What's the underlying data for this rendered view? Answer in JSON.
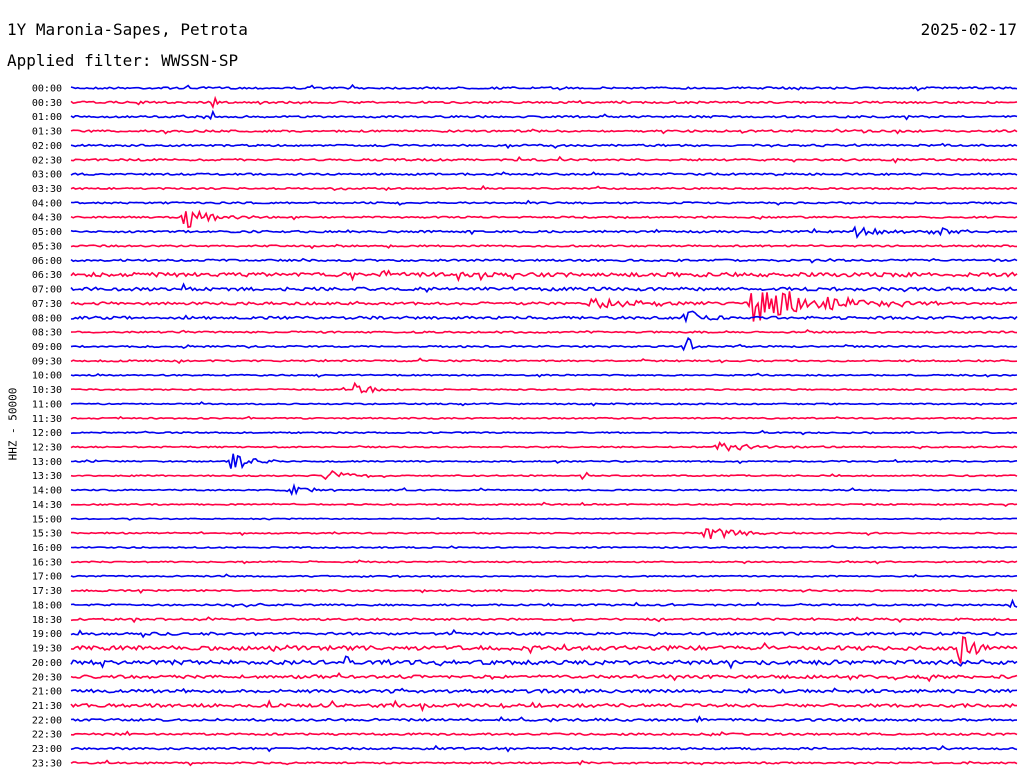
{
  "header": {
    "station": "1Y Maronia-Sapes, Petrota",
    "date": "2025-02-17",
    "filter": "Applied filter: WWSSN-SP"
  },
  "chart_data": {
    "type": "line",
    "chart_kind": "helicorder",
    "ylabel": "HHZ - 50000",
    "colors": [
      "#0000ee",
      "#ff0044"
    ],
    "grid": false,
    "row_labels": [
      "00:00",
      "00:30",
      "01:00",
      "01:30",
      "02:00",
      "02:30",
      "03:00",
      "03:30",
      "04:00",
      "04:30",
      "05:00",
      "05:30",
      "06:00",
      "06:30",
      "07:00",
      "07:30",
      "08:00",
      "08:30",
      "09:00",
      "09:30",
      "10:00",
      "10:30",
      "11:00",
      "11:30",
      "12:00",
      "12:30",
      "13:00",
      "13:30",
      "14:00",
      "14:30",
      "15:00",
      "15:30",
      "16:00",
      "16:30",
      "17:00",
      "17:30",
      "18:00",
      "18:30",
      "19:00",
      "19:30",
      "20:00",
      "20:30",
      "21:00",
      "21:30",
      "22:00",
      "22:30",
      "23:00",
      "23:30"
    ],
    "row_noise": [
      0.6,
      0.6,
      0.6,
      0.6,
      0.6,
      0.6,
      0.6,
      0.5,
      0.5,
      0.5,
      0.6,
      0.5,
      0.6,
      1.2,
      1.0,
      0.8,
      0.8,
      0.5,
      0.5,
      0.5,
      0.4,
      0.4,
      0.4,
      0.4,
      0.4,
      0.4,
      0.4,
      0.4,
      0.4,
      0.4,
      0.3,
      0.4,
      0.4,
      0.4,
      0.4,
      0.5,
      0.5,
      0.6,
      0.8,
      1.3,
      1.3,
      1.0,
      1.0,
      1.0,
      0.7,
      0.6,
      0.6,
      0.5
    ],
    "events": [
      {
        "row": 1,
        "t": 0.15,
        "amp": 15,
        "dur": 0.003
      },
      {
        "row": 2,
        "t": 0.15,
        "amp": 10,
        "dur": 0.003
      },
      {
        "row": 9,
        "t": 0.12,
        "amp": 12,
        "dur": 0.025
      },
      {
        "row": 10,
        "t": 0.83,
        "amp": 8,
        "dur": 0.02
      },
      {
        "row": 10,
        "t": 0.91,
        "amp": 7,
        "dur": 0.015
      },
      {
        "row": 13,
        "t": 0.33,
        "amp": 6,
        "dur": 0.015
      },
      {
        "row": 15,
        "t": 0.55,
        "amp": 5,
        "dur": 0.06
      },
      {
        "row": 15,
        "t": 0.72,
        "amp": 20,
        "dur": 0.07
      },
      {
        "row": 16,
        "t": 0.65,
        "amp": 12,
        "dur": 0.02
      },
      {
        "row": 18,
        "t": 0.65,
        "amp": 22,
        "dur": 0.004
      },
      {
        "row": 21,
        "t": 0.3,
        "amp": 6,
        "dur": 0.02
      },
      {
        "row": 26,
        "t": 0.17,
        "amp": 14,
        "dur": 0.02
      },
      {
        "row": 27,
        "t": 0.27,
        "amp": 7,
        "dur": 0.02
      },
      {
        "row": 27,
        "t": 0.54,
        "amp": 9,
        "dur": 0.005
      },
      {
        "row": 28,
        "t": 0.23,
        "amp": 5,
        "dur": 0.03
      },
      {
        "row": 31,
        "t": 0.67,
        "amp": 6,
        "dur": 0.04
      },
      {
        "row": 25,
        "t": 0.68,
        "amp": 5,
        "dur": 0.04
      },
      {
        "row": 39,
        "t": 0.94,
        "amp": 18,
        "dur": 0.012
      },
      {
        "row": 36,
        "t": 0.995,
        "amp": 8,
        "dur": 0.003
      }
    ]
  }
}
